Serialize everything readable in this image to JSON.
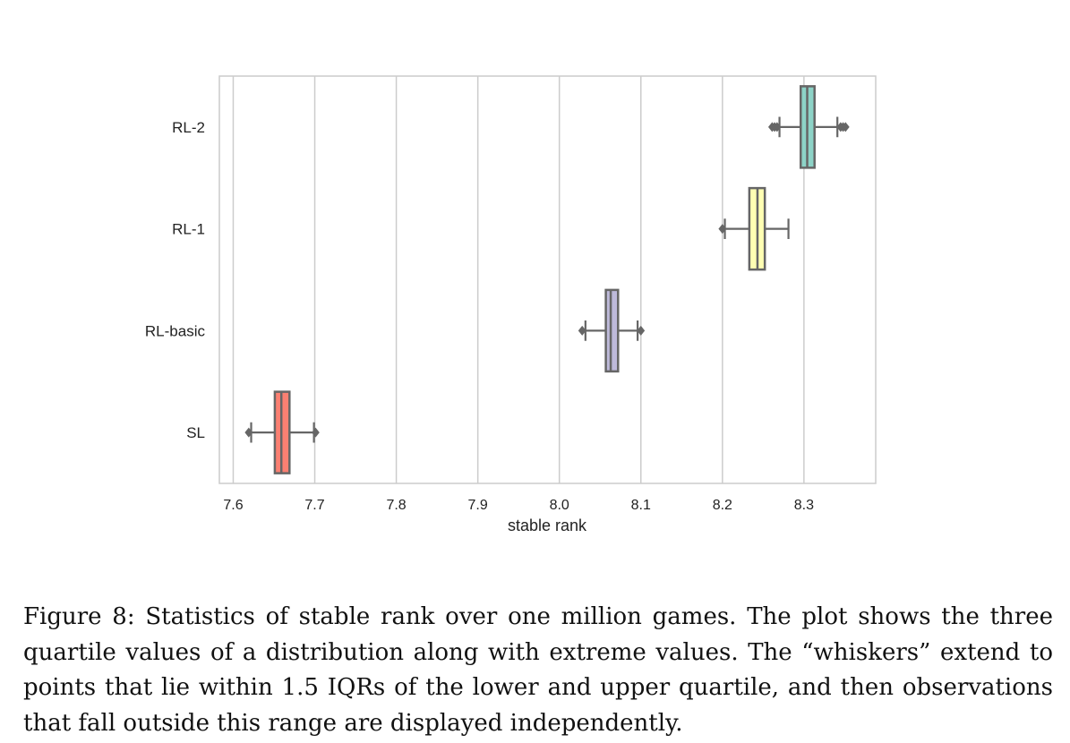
{
  "chart_data": {
    "type": "box",
    "xlabel": "stable rank",
    "ylabel": "",
    "xlim": [
      7.583,
      8.388
    ],
    "xticks": [
      "7.6",
      "7.7",
      "7.8",
      "7.9",
      "8.0",
      "8.1",
      "8.2",
      "8.3"
    ],
    "grid": "vertical",
    "categories": [
      "RL-2",
      "RL-1",
      "RL-basic",
      "SL"
    ],
    "boxes": [
      {
        "label": "RL-2",
        "color": "#8dd3c7",
        "whisker_low": 8.27,
        "q1": 8.296,
        "median": 8.304,
        "q3": 8.313,
        "whisker_high": 8.341,
        "outliers": [
          8.261,
          8.264,
          8.267,
          8.345,
          8.348,
          8.351
        ]
      },
      {
        "label": "RL-1",
        "color": "#ffffb3",
        "whisker_low": 8.203,
        "q1": 8.233,
        "median": 8.243,
        "q3": 8.252,
        "whisker_high": 8.281,
        "outliers": [
          8.2
        ]
      },
      {
        "label": "RL-basic",
        "color": "#bebada",
        "whisker_low": 8.032,
        "q1": 8.057,
        "median": 8.063,
        "q3": 8.072,
        "whisker_high": 8.096,
        "outliers": [
          8.028,
          8.1
        ]
      },
      {
        "label": "SL",
        "color": "#fb8072",
        "whisker_low": 7.622,
        "q1": 7.651,
        "median": 7.659,
        "q3": 7.669,
        "whisker_high": 7.699,
        "outliers": [
          7.619,
          7.701
        ]
      }
    ]
  },
  "caption": "Figure 8: Statistics of stable rank over one million games. The plot shows the three quartile values of a distribution along with extreme values. The “whiskers” extend to points that lie within 1.5 IQRs of the lower and upper quartile, and then observations that fall outside this range are displayed independently."
}
